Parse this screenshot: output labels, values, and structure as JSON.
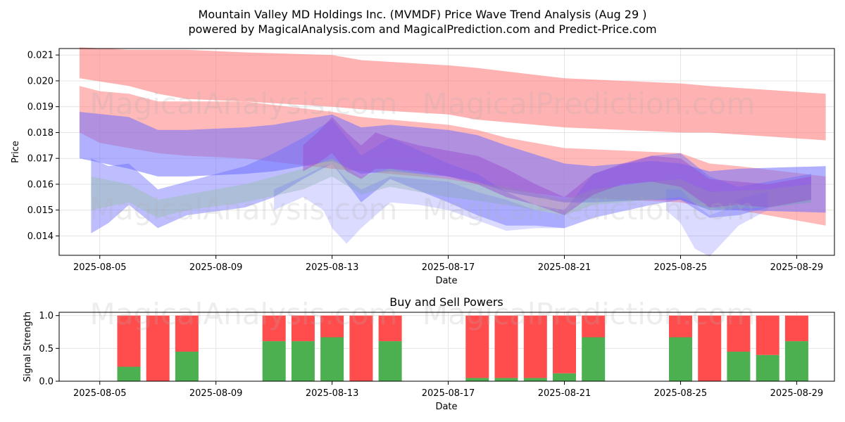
{
  "title_line1": "Mountain Valley MD Holdings Inc. (MVMDF) Price Wave Trend Analysis (Aug 29 )",
  "title_line2": "powered by MagicalAnalysis.com and MagicalPrediction.com and Predict-Price.com",
  "watermarks": [
    "MagicalAnalysis.com",
    "MagicalPrediction.com"
  ],
  "colors": {
    "red_band": "#ff7f7f",
    "blue_band": "#6f6fff",
    "purple_band": "#9a4ad0",
    "green_band": "#8fbf8f",
    "buy": "#4caf50",
    "sell": "#ff4d4d"
  },
  "chart_data": [
    {
      "type": "area",
      "title": "",
      "xlabel": "Date",
      "ylabel": "Price",
      "x_range_days": [
        3.6,
        30.3
      ],
      "ylim": [
        0.01325,
        0.02125
      ],
      "x_ticks": [
        {
          "day": 5,
          "label": "2025-08-05"
        },
        {
          "day": 9,
          "label": "2025-08-09"
        },
        {
          "day": 13,
          "label": "2025-08-13"
        },
        {
          "day": 17,
          "label": "2025-08-17"
        },
        {
          "day": 21,
          "label": "2025-08-21"
        },
        {
          "day": 25,
          "label": "2025-08-25"
        },
        {
          "day": 29,
          "label": "2025-08-29"
        }
      ],
      "y_ticks": [
        "0.014",
        "0.015",
        "0.016",
        "0.017",
        "0.018",
        "0.019",
        "0.020",
        "0.021"
      ],
      "grid": true,
      "series": [
        {
          "name": "upper-red-band",
          "color": "red",
          "opacity": 0.6,
          "x": [
            4.3,
            6,
            7,
            8,
            10,
            13,
            14,
            17,
            18,
            21,
            25,
            26,
            30
          ],
          "upper": [
            0.0213,
            0.0212,
            0.0212,
            0.0212,
            0.0211,
            0.021,
            0.0208,
            0.0206,
            0.0205,
            0.0201,
            0.0199,
            0.0198,
            0.0195
          ],
          "lower": [
            0.0201,
            0.0198,
            0.0195,
            0.0193,
            0.0192,
            0.019,
            0.0189,
            0.0187,
            0.0185,
            0.0182,
            0.018,
            0.018,
            0.0177
          ]
        },
        {
          "name": "mid-red-band",
          "color": "red",
          "opacity": 0.55,
          "x": [
            4.3,
            5,
            6,
            7,
            8,
            10,
            13,
            14,
            15,
            17,
            18,
            19,
            21,
            25,
            26,
            27,
            30
          ],
          "upper": [
            0.0198,
            0.0196,
            0.0195,
            0.0192,
            0.0192,
            0.0192,
            0.0188,
            0.0186,
            0.0185,
            0.0183,
            0.0181,
            0.0178,
            0.0174,
            0.0172,
            0.0168,
            0.0167,
            0.0163
          ],
          "lower": [
            0.018,
            0.0176,
            0.0174,
            0.0172,
            0.0171,
            0.017,
            0.0166,
            0.0165,
            0.0164,
            0.0162,
            0.016,
            0.0158,
            0.0155,
            0.0153,
            0.0151,
            0.015,
            0.0144
          ]
        },
        {
          "name": "upper-blue-band",
          "color": "blue",
          "opacity": 0.55,
          "x": [
            4.3,
            6,
            7,
            8,
            10,
            11,
            12,
            13,
            14,
            15,
            17,
            18,
            19,
            21,
            22,
            24,
            25,
            26,
            27,
            30
          ],
          "upper": [
            0.0188,
            0.0186,
            0.0181,
            0.0181,
            0.0182,
            0.0183,
            0.0185,
            0.0187,
            0.0182,
            0.0183,
            0.0181,
            0.0179,
            0.0175,
            0.0168,
            0.0167,
            0.0169,
            0.0168,
            0.0165,
            0.0166,
            0.0167
          ],
          "lower": [
            0.017,
            0.0166,
            0.0163,
            0.0163,
            0.0164,
            0.0165,
            0.0167,
            0.0169,
            0.0164,
            0.0165,
            0.0163,
            0.0161,
            0.0157,
            0.0153,
            0.0153,
            0.0154,
            0.0154,
            0.015,
            0.015,
            0.0149
          ]
        },
        {
          "name": "lower-blue-band",
          "color": "blue",
          "opacity": 0.45,
          "x": [
            4.7,
            5.3,
            6,
            7,
            8,
            10,
            11,
            12,
            13,
            14,
            15,
            17,
            18,
            19,
            20,
            21,
            22,
            24,
            25,
            26,
            27,
            28,
            29.5
          ],
          "upper": [
            0.017,
            0.0167,
            0.0168,
            0.0158,
            0.0161,
            0.0167,
            0.0172,
            0.0178,
            0.0185,
            0.0171,
            0.0178,
            0.0168,
            0.0164,
            0.0157,
            0.0152,
            0.015,
            0.0164,
            0.0171,
            0.0172,
            0.0163,
            0.0159,
            0.0161,
            0.0164
          ],
          "lower": [
            0.0141,
            0.0145,
            0.0152,
            0.0143,
            0.0148,
            0.0151,
            0.0155,
            0.0162,
            0.0168,
            0.0153,
            0.0162,
            0.0153,
            0.0148,
            0.0144,
            0.0144,
            0.0143,
            0.0147,
            0.0152,
            0.0154,
            0.0147,
            0.0148,
            0.0151,
            0.0153
          ]
        },
        {
          "name": "green-band",
          "color": "green",
          "opacity": 0.35,
          "x": [
            4.7,
            6,
            7,
            8,
            10,
            12,
            13,
            14,
            15,
            17,
            19,
            21,
            22,
            24,
            25,
            26,
            28,
            29.5
          ],
          "upper": [
            0.0163,
            0.016,
            0.0154,
            0.0156,
            0.016,
            0.0166,
            0.017,
            0.0163,
            0.0166,
            0.0162,
            0.0159,
            0.0154,
            0.0158,
            0.0161,
            0.0162,
            0.0157,
            0.0158,
            0.016
          ],
          "lower": [
            0.015,
            0.0153,
            0.0147,
            0.015,
            0.0153,
            0.0158,
            0.0163,
            0.0156,
            0.0159,
            0.0155,
            0.0152,
            0.0148,
            0.0152,
            0.0154,
            0.0155,
            0.015,
            0.0151,
            0.0153
          ]
        },
        {
          "name": "dip-blue-band",
          "color": "blue",
          "opacity": 0.25,
          "x": [
            11,
            12,
            12.7,
            13,
            13.5,
            14,
            15,
            16,
            17,
            18,
            19,
            20,
            21
          ],
          "upper": [
            0.0158,
            0.0163,
            0.0167,
            0.0168,
            0.0162,
            0.0158,
            0.0163,
            0.0162,
            0.0161,
            0.0157,
            0.0154,
            0.015,
            0.0148
          ],
          "lower": [
            0.015,
            0.0155,
            0.015,
            0.0143,
            0.0137,
            0.0143,
            0.0153,
            0.0152,
            0.015,
            0.0146,
            0.0142,
            0.0143,
            0.0143
          ]
        },
        {
          "name": "dip-blue-band-2",
          "color": "blue",
          "opacity": 0.25,
          "x": [
            24.5,
            25,
            25.5,
            26,
            26.5,
            27,
            27.5,
            28
          ],
          "upper": [
            0.0158,
            0.0158,
            0.0152,
            0.0148,
            0.015,
            0.0154,
            0.0156,
            0.0157
          ],
          "lower": [
            0.015,
            0.0145,
            0.0135,
            0.0132,
            0.0138,
            0.0144,
            0.0147,
            0.015
          ]
        },
        {
          "name": "purple-wave-band",
          "color": "purple",
          "opacity": 0.45,
          "x": [
            12,
            12.5,
            13,
            13.5,
            14,
            14.5,
            15,
            16,
            17,
            18,
            19,
            20,
            21,
            22,
            23,
            24,
            25,
            26,
            27,
            28,
            29.5
          ],
          "upper": [
            0.0175,
            0.018,
            0.0186,
            0.018,
            0.0175,
            0.018,
            0.0178,
            0.0175,
            0.0173,
            0.0171,
            0.0166,
            0.016,
            0.0155,
            0.0164,
            0.0168,
            0.0171,
            0.017,
            0.0162,
            0.0161,
            0.016,
            0.0163
          ],
          "lower": [
            0.0165,
            0.0168,
            0.0172,
            0.0165,
            0.0162,
            0.0166,
            0.0166,
            0.0165,
            0.0163,
            0.016,
            0.0155,
            0.0152,
            0.0148,
            0.0156,
            0.016,
            0.0161,
            0.0159,
            0.0151,
            0.0152,
            0.0151,
            0.0154
          ]
        }
      ]
    },
    {
      "type": "bar",
      "title": "Buy and Sell Powers",
      "xlabel": "Date",
      "ylabel": "Signal Strength",
      "x_range_days": [
        3.6,
        30.3
      ],
      "ylim": [
        0,
        1.05
      ],
      "x_ticks": [
        {
          "day": 5,
          "label": "2025-08-05"
        },
        {
          "day": 9,
          "label": "2025-08-09"
        },
        {
          "day": 13,
          "label": "2025-08-13"
        },
        {
          "day": 17,
          "label": "2025-08-17"
        },
        {
          "day": 21,
          "label": "2025-08-21"
        },
        {
          "day": 25,
          "label": "2025-08-25"
        },
        {
          "day": 29,
          "label": "2025-08-29"
        }
      ],
      "y_ticks": [
        "0.0",
        "0.5",
        "1.0"
      ],
      "series": [
        {
          "name": "buy",
          "color": "green",
          "days": [
            6,
            7,
            8,
            11,
            12,
            13,
            14,
            15,
            18,
            19,
            20,
            21,
            22,
            25,
            26,
            27,
            28,
            29
          ],
          "values": [
            0.22,
            0.0,
            0.45,
            0.61,
            0.61,
            0.67,
            0.0,
            0.61,
            0.05,
            0.05,
            0.05,
            0.12,
            0.67,
            0.67,
            0.0,
            0.45,
            0.4,
            0.61
          ]
        },
        {
          "name": "sell",
          "color": "red",
          "days": [
            6,
            7,
            8,
            11,
            12,
            13,
            14,
            15,
            18,
            19,
            20,
            21,
            22,
            25,
            26,
            27,
            28,
            29
          ],
          "values": [
            0.78,
            1.0,
            0.55,
            0.39,
            0.39,
            0.33,
            1.0,
            0.39,
            0.95,
            0.95,
            0.95,
            0.88,
            0.33,
            0.33,
            1.0,
            0.55,
            0.6,
            0.39
          ]
        }
      ]
    }
  ]
}
